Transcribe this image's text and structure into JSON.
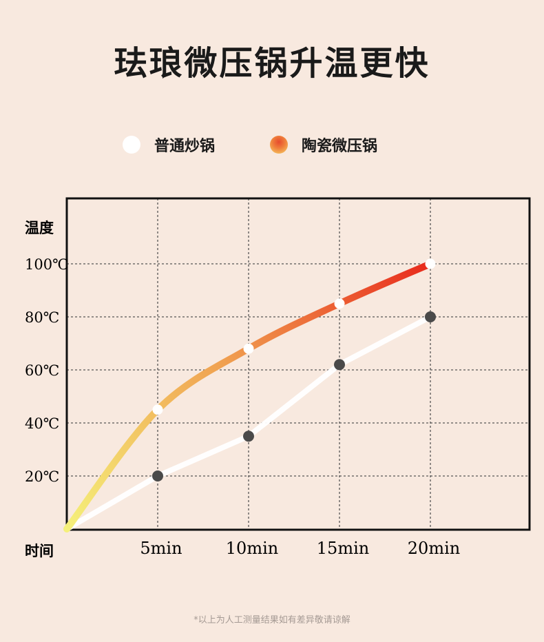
{
  "title": "珐琅微压锅升温更快",
  "footnote": "*以上为人工测量结果如有差异敬请谅解",
  "legend": [
    {
      "label": "普通炒锅",
      "color": "#ffffff"
    },
    {
      "label": "陶瓷微压锅",
      "color": "#f0813c"
    }
  ],
  "chart_data": {
    "type": "line",
    "ylabel": "温度",
    "xlabel": "时间",
    "x": [
      0,
      5,
      10,
      15,
      20
    ],
    "categories": [
      "5min",
      "10min",
      "15min",
      "20min"
    ],
    "y_ticks": [
      20,
      40,
      60,
      80,
      100
    ],
    "y_tick_labels": [
      "20℃",
      "40℃",
      "60℃",
      "80℃",
      "100℃"
    ],
    "xlim": [
      0,
      20
    ],
    "ylim": [
      0,
      100
    ],
    "grid": true,
    "legend_position": "top",
    "series": [
      {
        "name": "普通炒锅",
        "values": [
          0,
          20,
          35,
          62,
          80
        ],
        "color": "#ffffff",
        "marker_color": "#4a4a4a"
      },
      {
        "name": "陶瓷微压锅",
        "values": [
          0,
          45,
          68,
          85,
          100
        ],
        "color_start": "#f5f07a",
        "color_mid": "#f0a050",
        "color_end": "#e82a1c",
        "marker_color": "#ffffff"
      }
    ]
  }
}
